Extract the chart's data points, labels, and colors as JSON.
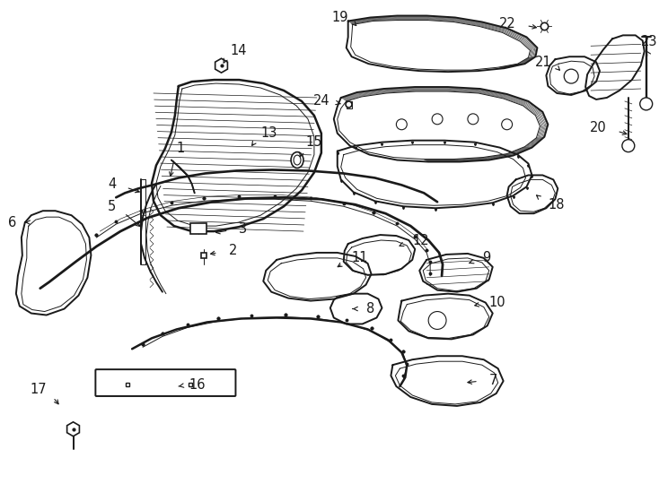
{
  "bg_color": "#ffffff",
  "line_color": "#1a1a1a",
  "lw_main": 1.4,
  "lw_thin": 0.7,
  "lw_detail": 0.45,
  "fs_label": 10.5,
  "fig_w": 7.34,
  "fig_h": 5.4,
  "dpi": 100,
  "xlim": [
    0,
    734
  ],
  "ylim": [
    0,
    540
  ]
}
